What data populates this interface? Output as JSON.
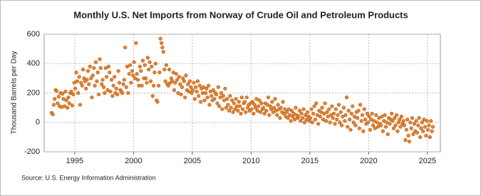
{
  "chart_data": {
    "type": "scatter",
    "title": "Monthly U.S. Net Imports from Norway of Crude Oil and Petroleum Products",
    "y_label": "Thousand Barrels per Day",
    "source": "Source: U.S. Energy Information Administration",
    "xlim": [
      1992.4,
      2026.1
    ],
    "xticks": [
      1995,
      2000,
      2005,
      2010,
      2015,
      2020,
      2025
    ],
    "ylim": [
      -200,
      600
    ],
    "yticks": [
      -200,
      0,
      200,
      400,
      600
    ],
    "grid": true,
    "series": [
      {
        "name": "Net Imports",
        "color": "#e0862a",
        "x": [
          1993.04,
          1993.13,
          1993.21,
          1993.29,
          1993.38,
          1993.46,
          1993.54,
          1993.63,
          1993.71,
          1993.79,
          1993.88,
          1993.96,
          1994.04,
          1994.13,
          1994.21,
          1994.29,
          1994.38,
          1994.46,
          1994.54,
          1994.63,
          1994.71,
          1994.79,
          1994.88,
          1994.96,
          1995.04,
          1995.13,
          1995.21,
          1995.29,
          1995.38,
          1995.46,
          1995.54,
          1995.63,
          1995.71,
          1995.79,
          1995.88,
          1995.96,
          1996.04,
          1996.13,
          1996.21,
          1996.29,
          1996.38,
          1996.46,
          1996.54,
          1996.63,
          1996.71,
          1996.79,
          1996.88,
          1996.96,
          1997.04,
          1997.13,
          1997.21,
          1997.29,
          1997.38,
          1997.46,
          1997.54,
          1997.63,
          1997.71,
          1997.79,
          1997.88,
          1997.96,
          1998.04,
          1998.13,
          1998.21,
          1998.29,
          1998.38,
          1998.46,
          1998.54,
          1998.63,
          1998.71,
          1998.79,
          1998.88,
          1998.96,
          1999.04,
          1999.13,
          1999.21,
          1999.29,
          1999.38,
          1999.46,
          1999.54,
          1999.63,
          1999.71,
          1999.79,
          1999.88,
          1999.96,
          2000.04,
          2000.13,
          2000.21,
          2000.29,
          2000.38,
          2000.46,
          2000.54,
          2000.63,
          2000.71,
          2000.79,
          2000.88,
          2000.96,
          2001.04,
          2001.13,
          2001.21,
          2001.29,
          2001.38,
          2001.46,
          2001.54,
          2001.63,
          2001.71,
          2001.79,
          2001.88,
          2001.96,
          2002.04,
          2002.13,
          2002.21,
          2002.29,
          2002.38,
          2002.46,
          2002.54,
          2002.63,
          2002.71,
          2002.79,
          2002.88,
          2002.96,
          2003.04,
          2003.13,
          2003.21,
          2003.29,
          2003.38,
          2003.46,
          2003.54,
          2003.63,
          2003.71,
          2003.79,
          2003.88,
          2003.96,
          2004.04,
          2004.13,
          2004.21,
          2004.29,
          2004.38,
          2004.46,
          2004.54,
          2004.63,
          2004.71,
          2004.79,
          2004.88,
          2004.96,
          2005.04,
          2005.13,
          2005.21,
          2005.29,
          2005.38,
          2005.46,
          2005.54,
          2005.63,
          2005.71,
          2005.79,
          2005.88,
          2005.96,
          2006.04,
          2006.13,
          2006.21,
          2006.29,
          2006.38,
          2006.46,
          2006.54,
          2006.63,
          2006.71,
          2006.79,
          2006.88,
          2006.96,
          2007.04,
          2007.13,
          2007.21,
          2007.29,
          2007.38,
          2007.46,
          2007.54,
          2007.63,
          2007.71,
          2007.79,
          2007.88,
          2007.96,
          2008.04,
          2008.13,
          2008.21,
          2008.29,
          2008.38,
          2008.46,
          2008.54,
          2008.63,
          2008.71,
          2008.79,
          2008.88,
          2008.96,
          2009.04,
          2009.13,
          2009.21,
          2009.29,
          2009.38,
          2009.46,
          2009.54,
          2009.63,
          2009.71,
          2009.79,
          2009.88,
          2009.96,
          2010.04,
          2010.13,
          2010.21,
          2010.29,
          2010.38,
          2010.46,
          2010.54,
          2010.63,
          2010.71,
          2010.79,
          2010.88,
          2010.96,
          2011.04,
          2011.13,
          2011.21,
          2011.29,
          2011.38,
          2011.46,
          2011.54,
          2011.63,
          2011.71,
          2011.79,
          2011.88,
          2011.96,
          2012.04,
          2012.13,
          2012.21,
          2012.29,
          2012.38,
          2012.46,
          2012.54,
          2012.63,
          2012.71,
          2012.79,
          2012.88,
          2012.96,
          2013.04,
          2013.13,
          2013.21,
          2013.29,
          2013.38,
          2013.46,
          2013.54,
          2013.63,
          2013.71,
          2013.79,
          2013.88,
          2013.96,
          2014.04,
          2014.13,
          2014.21,
          2014.29,
          2014.38,
          2014.46,
          2014.54,
          2014.63,
          2014.71,
          2014.79,
          2014.88,
          2014.96,
          2015.04,
          2015.13,
          2015.21,
          2015.29,
          2015.38,
          2015.46,
          2015.54,
          2015.63,
          2015.71,
          2015.79,
          2015.88,
          2015.96,
          2016.04,
          2016.13,
          2016.21,
          2016.29,
          2016.38,
          2016.46,
          2016.54,
          2016.63,
          2016.71,
          2016.79,
          2016.88,
          2016.96,
          2017.04,
          2017.13,
          2017.21,
          2017.29,
          2017.38,
          2017.46,
          2017.54,
          2017.63,
          2017.71,
          2017.79,
          2017.88,
          2017.96,
          2018.04,
          2018.13,
          2018.21,
          2018.29,
          2018.38,
          2018.46,
          2018.54,
          2018.63,
          2018.71,
          2018.79,
          2018.88,
          2018.96,
          2019.04,
          2019.13,
          2019.21,
          2019.29,
          2019.38,
          2019.46,
          2019.54,
          2019.63,
          2019.71,
          2019.79,
          2019.88,
          2019.96,
          2020.04,
          2020.13,
          2020.21,
          2020.29,
          2020.38,
          2020.46,
          2020.54,
          2020.63,
          2020.71,
          2020.79,
          2020.88,
          2020.96,
          2021.04,
          2021.13,
          2021.21,
          2021.29,
          2021.38,
          2021.46,
          2021.54,
          2021.63,
          2021.71,
          2021.79,
          2021.88,
          2021.96,
          2022.04,
          2022.13,
          2022.21,
          2022.29,
          2022.38,
          2022.46,
          2022.54,
          2022.63,
          2022.71,
          2022.79,
          2022.88,
          2022.96,
          2023.04,
          2023.13,
          2023.21,
          2023.29,
          2023.38,
          2023.46,
          2023.54,
          2023.63,
          2023.71,
          2023.79,
          2023.88,
          2023.96,
          2024.04,
          2024.13,
          2024.21,
          2024.29,
          2024.38,
          2024.46,
          2024.54,
          2024.63,
          2024.71,
          2024.79,
          2024.88,
          2024.96,
          2025.04,
          2025.13,
          2025.21,
          2025.29,
          2025.38,
          2025.46
        ],
        "values": [
          65,
          55,
          120,
          160,
          220,
          215,
          130,
          175,
          110,
          200,
          105,
          195,
          160,
          110,
          210,
          150,
          100,
          170,
          130,
          200,
          210,
          115,
          190,
          270,
          230,
          340,
          280,
          200,
          310,
          120,
          270,
          250,
          360,
          300,
          280,
          230,
          290,
          350,
          260,
          380,
          300,
          170,
          320,
          370,
          250,
          410,
          280,
          340,
          190,
          430,
          370,
          260,
          290,
          240,
          200,
          370,
          310,
          220,
          380,
          340,
          210,
          290,
          180,
          250,
          310,
          200,
          230,
          190,
          350,
          270,
          220,
          210,
          200,
          260,
          290,
          510,
          240,
          380,
          200,
          330,
          390,
          270,
          350,
          320,
          410,
          300,
          540,
          330,
          290,
          250,
          380,
          350,
          250,
          420,
          300,
          390,
          300,
          270,
          440,
          360,
          410,
          280,
          380,
          180,
          250,
          340,
          400,
          150,
          140,
          250,
          340,
          570,
          540,
          510,
          480,
          360,
          280,
          390,
          260,
          250,
          360,
          270,
          300,
          280,
          340,
          220,
          270,
          330,
          290,
          200,
          310,
          260,
          190,
          240,
          300,
          280,
          170,
          320,
          220,
          260,
          210,
          280,
          240,
          200,
          220,
          270,
          160,
          240,
          210,
          280,
          180,
          250,
          140,
          230,
          200,
          240,
          150,
          200,
          230,
          170,
          250,
          120,
          210,
          180,
          150,
          220,
          160,
          200,
          190,
          130,
          240,
          110,
          170,
          200,
          90,
          180,
          150,
          230,
          100,
          160,
          120,
          80,
          180,
          100,
          150,
          70,
          130,
          90,
          160,
          110,
          80,
          140,
          110,
          60,
          170,
          90,
          130,
          140,
          70,
          170,
          100,
          120,
          80,
          130,
          90,
          140,
          60,
          120,
          100,
          160,
          80,
          110,
          150,
          70,
          130,
          90,
          100,
          60,
          130,
          80,
          120,
          170,
          50,
          110,
          90,
          140,
          70,
          100,
          160,
          80,
          50,
          120,
          90,
          30,
          100,
          70,
          140,
          60,
          90,
          40,
          70,
          30,
          90,
          50,
          10,
          80,
          40,
          60,
          20,
          100,
          50,
          30,
          40,
          80,
          10,
          60,
          30,
          90,
          0,
          50,
          20,
          70,
          40,
          10,
          30,
          90,
          0,
          60,
          110,
          20,
          130,
          50,
          -10,
          80,
          40,
          70,
          100,
          20,
          60,
          130,
          10,
          70,
          40,
          90,
          0,
          50,
          110,
          30,
          60,
          -10,
          90,
          20,
          50,
          120,
          0,
          70,
          -20,
          40,
          100,
          10,
          50,
          170,
          -30,
          80,
          20,
          -50,
          60,
          110,
          0,
          40,
          -20,
          70,
          30,
          80,
          -40,
          120,
          10,
          50,
          -60,
          90,
          20,
          -10,
          60,
          0,
          40,
          -50,
          20,
          60,
          -20,
          10,
          -40,
          50,
          0,
          -30,
          30,
          -10,
          -20,
          40,
          -60,
          10,
          50,
          -30,
          0,
          -80,
          30,
          -10,
          20,
          60,
          10,
          -40,
          30,
          -20,
          50,
          -60,
          0,
          20,
          -30,
          40,
          -10,
          10,
          -20,
          -120,
          -50,
          20,
          -90,
          -130,
          0,
          -40,
          30,
          -80,
          -10,
          -60,
          10,
          -70,
          -20,
          30,
          -100,
          -40,
          0,
          -60,
          20,
          -30,
          -90,
          10,
          -50,
          -20,
          -100,
          10,
          -60,
          -30
        ]
      }
    ]
  }
}
